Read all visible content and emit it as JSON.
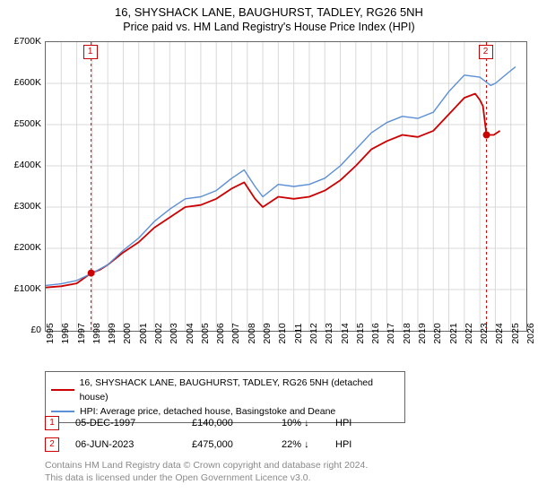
{
  "title": {
    "main": "16, SHYSHACK LANE, BAUGHURST, TADLEY, RG26 5NH",
    "sub": "Price paid vs. HM Land Registry's House Price Index (HPI)"
  },
  "chart": {
    "type": "line",
    "background_color": "#ffffff",
    "grid_color": "#d9d9d9",
    "axis_color": "#666666",
    "callout_color": "#cc0000",
    "x": {
      "min": 1995,
      "max": 2026,
      "tick_step": 1,
      "label_fontsize": 10.5
    },
    "y": {
      "min": 0,
      "max": 700000,
      "tick_step": 100000,
      "tick_labels": [
        "£0",
        "£100K",
        "£200K",
        "£300K",
        "£400K",
        "£500K",
        "£600K",
        "£700K"
      ],
      "label_fontsize": 10.5
    },
    "series": [
      {
        "id": "price_paid",
        "label": "16, SHYSHACK LANE, BAUGHURST, TADLEY, RG26 5NH (detached house)",
        "color": "#cc0000",
        "line_width": 1.8,
        "data": [
          [
            1995,
            105000
          ],
          [
            1996,
            108000
          ],
          [
            1997,
            115000
          ],
          [
            1997.93,
            140000
          ],
          [
            1998.5,
            148000
          ],
          [
            1999,
            160000
          ],
          [
            2000,
            190000
          ],
          [
            2001,
            215000
          ],
          [
            2002,
            250000
          ],
          [
            2003,
            275000
          ],
          [
            2004,
            300000
          ],
          [
            2005,
            305000
          ],
          [
            2006,
            320000
          ],
          [
            2007,
            345000
          ],
          [
            2007.8,
            360000
          ],
          [
            2008.5,
            320000
          ],
          [
            2009,
            300000
          ],
          [
            2010,
            325000
          ],
          [
            2011,
            320000
          ],
          [
            2012,
            325000
          ],
          [
            2013,
            340000
          ],
          [
            2014,
            365000
          ],
          [
            2015,
            400000
          ],
          [
            2016,
            440000
          ],
          [
            2017,
            460000
          ],
          [
            2018,
            475000
          ],
          [
            2019,
            470000
          ],
          [
            2020,
            485000
          ],
          [
            2021,
            525000
          ],
          [
            2022,
            565000
          ],
          [
            2022.7,
            575000
          ],
          [
            2023,
            560000
          ],
          [
            2023.2,
            545000
          ],
          [
            2023.43,
            475000
          ],
          [
            2023.9,
            475000
          ],
          [
            2024.3,
            485000
          ]
        ]
      },
      {
        "id": "hpi",
        "label": "HPI: Average price, detached house, Basingstoke and Deane",
        "color": "#5b8fd6",
        "line_width": 1.4,
        "data": [
          [
            1995,
            110000
          ],
          [
            1996,
            114000
          ],
          [
            1997,
            122000
          ],
          [
            1998,
            140000
          ],
          [
            1999,
            160000
          ],
          [
            2000,
            195000
          ],
          [
            2001,
            225000
          ],
          [
            2002,
            265000
          ],
          [
            2003,
            295000
          ],
          [
            2004,
            320000
          ],
          [
            2005,
            325000
          ],
          [
            2006,
            340000
          ],
          [
            2007,
            370000
          ],
          [
            2007.8,
            390000
          ],
          [
            2008.5,
            350000
          ],
          [
            2009,
            325000
          ],
          [
            2010,
            355000
          ],
          [
            2011,
            350000
          ],
          [
            2012,
            355000
          ],
          [
            2013,
            370000
          ],
          [
            2014,
            400000
          ],
          [
            2015,
            440000
          ],
          [
            2016,
            480000
          ],
          [
            2017,
            505000
          ],
          [
            2018,
            520000
          ],
          [
            2019,
            515000
          ],
          [
            2020,
            530000
          ],
          [
            2021,
            580000
          ],
          [
            2022,
            620000
          ],
          [
            2023,
            615000
          ],
          [
            2023.7,
            595000
          ],
          [
            2024,
            600000
          ],
          [
            2024.8,
            625000
          ],
          [
            2025.3,
            640000
          ]
        ]
      }
    ],
    "markers": [
      {
        "x": 1997.93,
        "y": 140000,
        "color": "#cc0000"
      },
      {
        "x": 2023.43,
        "y": 475000,
        "color": "#cc0000"
      }
    ],
    "callouts": [
      {
        "num": "1",
        "x": 1997.93
      },
      {
        "num": "2",
        "x": 2023.43
      }
    ]
  },
  "legend": {
    "rows": [
      {
        "color": "#cc0000",
        "label": "16, SHYSHACK LANE, BAUGHURST, TADLEY, RG26 5NH (detached house)"
      },
      {
        "color": "#5b8fd6",
        "label": "HPI: Average price, detached house, Basingstoke and Deane"
      }
    ]
  },
  "callout_table": {
    "arrow": "↓",
    "hpi_label": "HPI",
    "rows": [
      {
        "num": "1",
        "date": "05-DEC-1997",
        "price": "£140,000",
        "pct": "10%"
      },
      {
        "num": "2",
        "date": "06-JUN-2023",
        "price": "£475,000",
        "pct": "22%"
      }
    ]
  },
  "footer": {
    "line1": "Contains HM Land Registry data © Crown copyright and database right 2024.",
    "line2": "This data is licensed under the Open Government Licence v3.0."
  }
}
